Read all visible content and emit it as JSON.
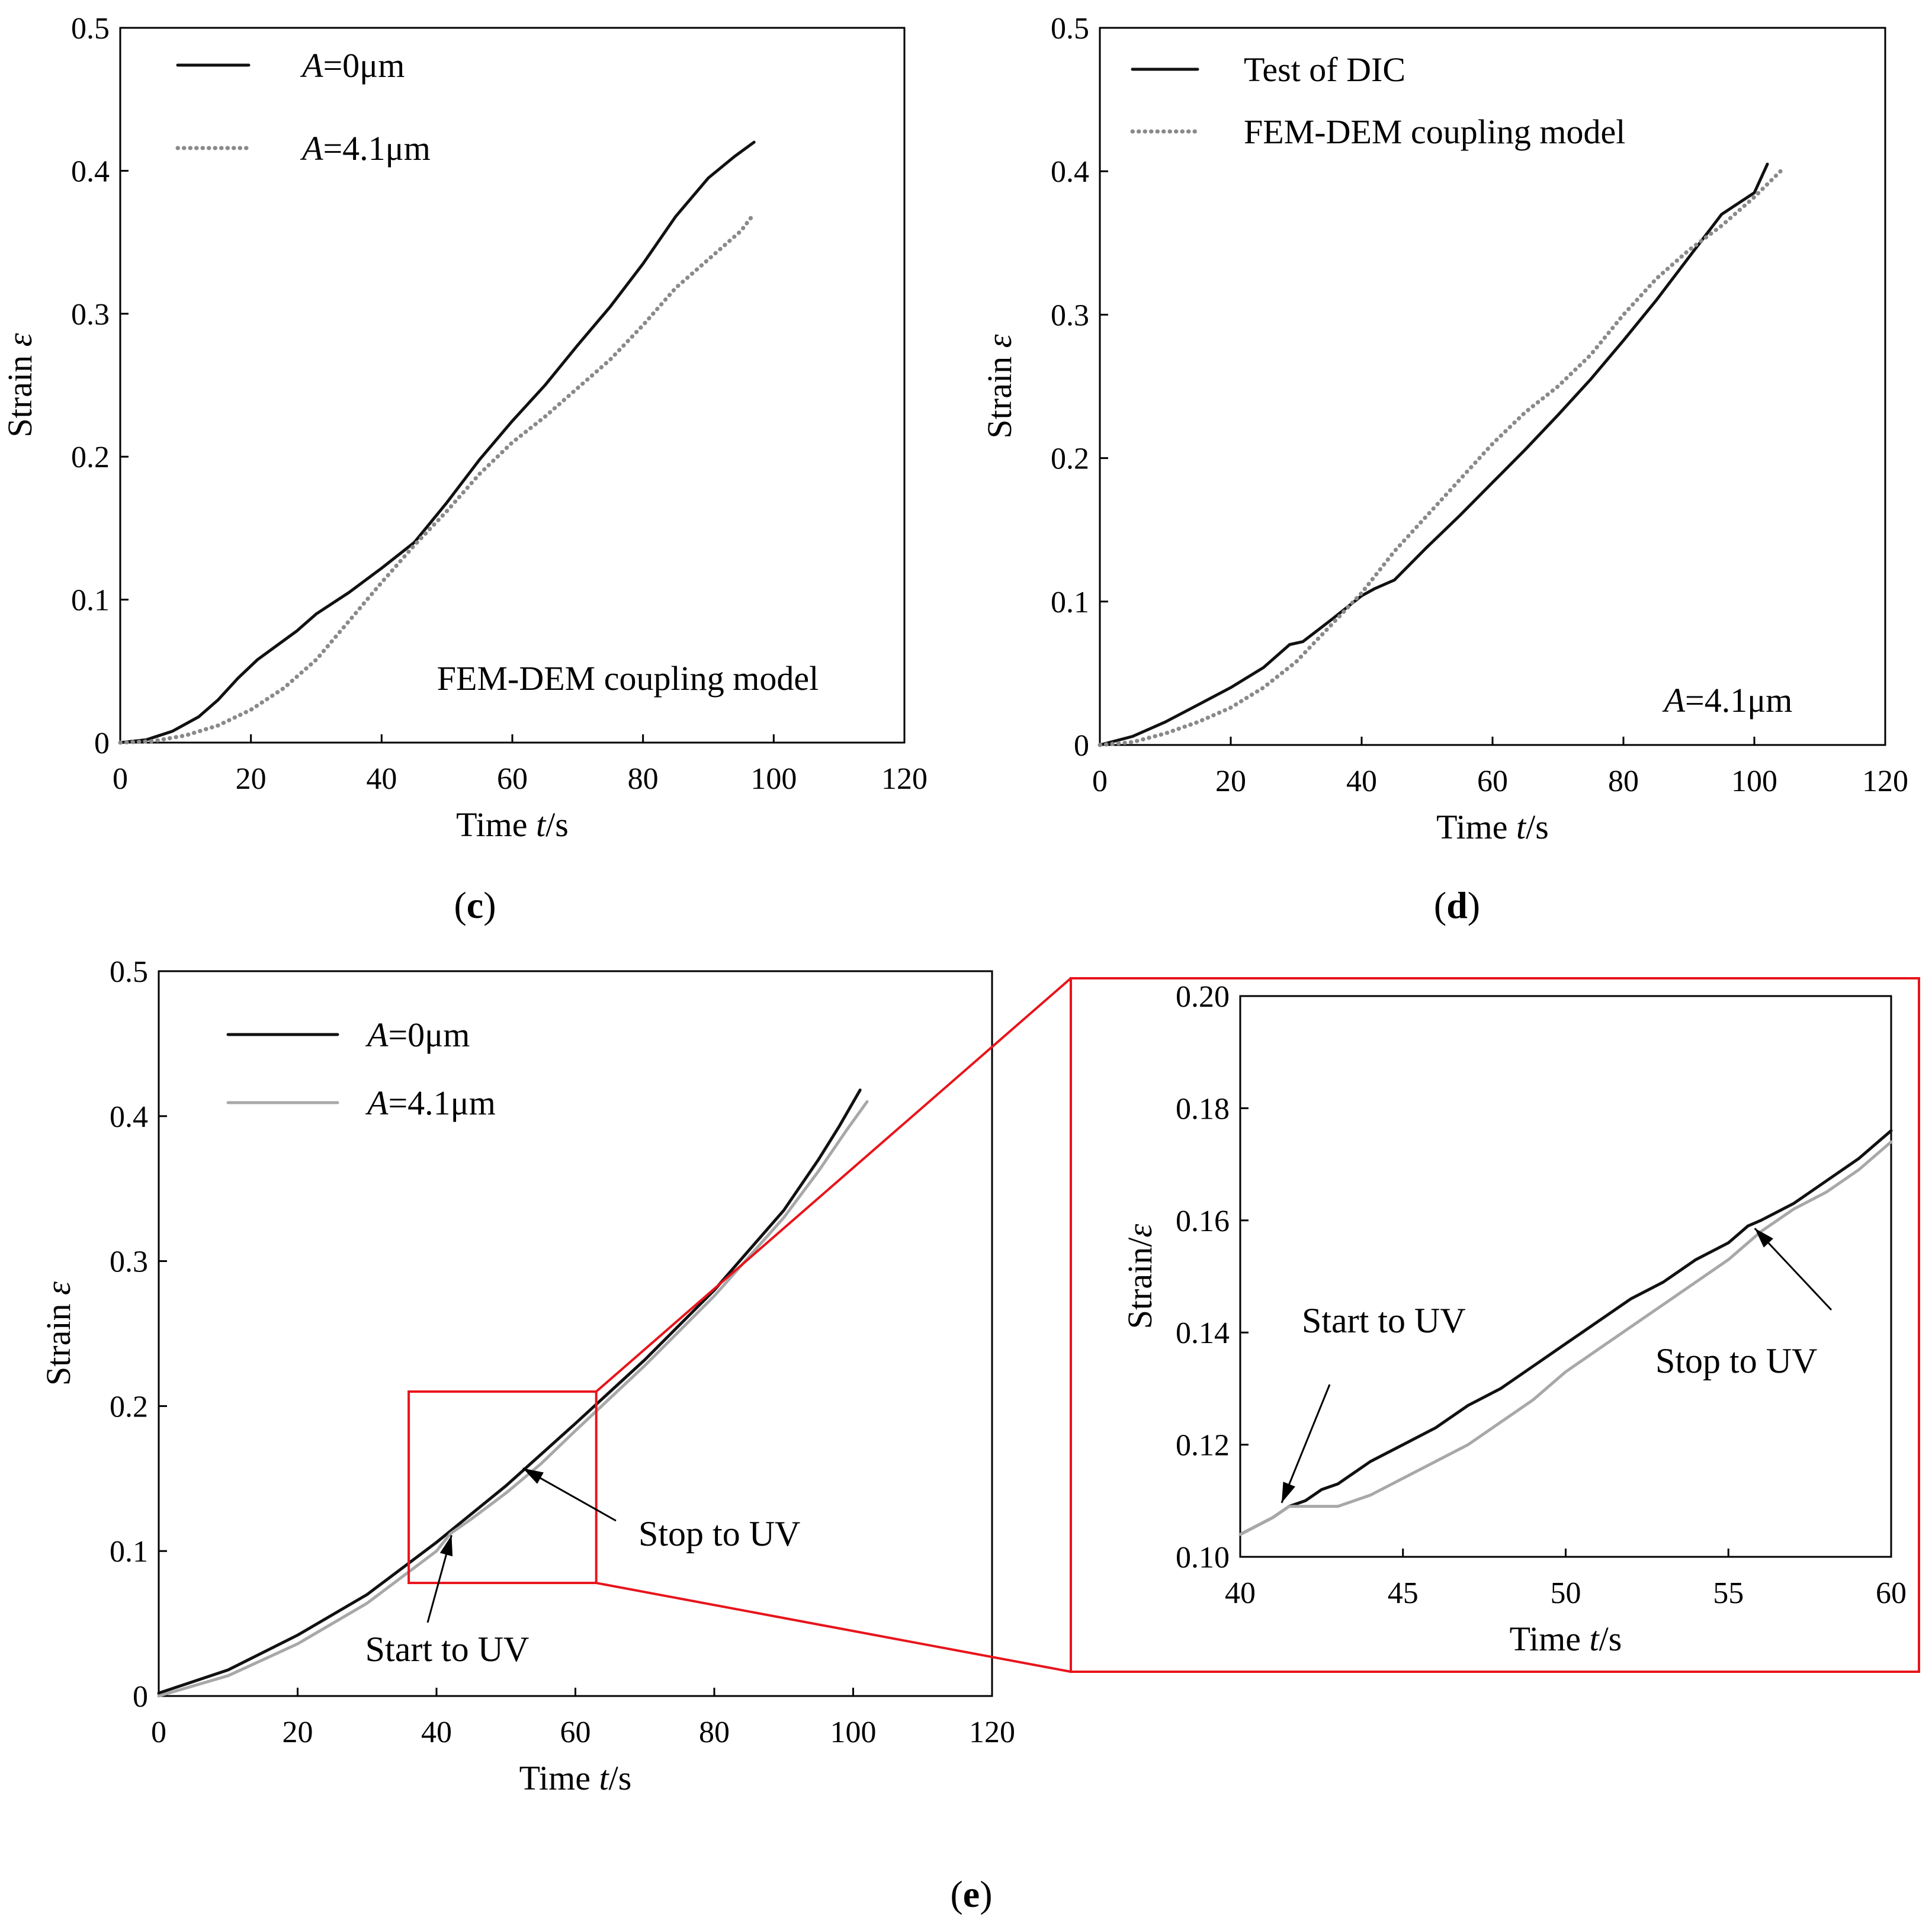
{
  "chart_data": [
    {
      "id": "c",
      "panel_label": "c",
      "type": "line",
      "xlabel": {
        "pre": "Time ",
        "var": "t",
        "post": "/s"
      },
      "ylabel": {
        "pre": "Strain ",
        "var": "ε"
      },
      "xlim": [
        0,
        120
      ],
      "ylim": [
        0,
        0.5
      ],
      "xticks": [
        "0",
        "20",
        "40",
        "60",
        "80",
        "100",
        "120"
      ],
      "yticks": [
        "0",
        "0.1",
        "0.2",
        "0.3",
        "0.4",
        "0.5"
      ],
      "annotation": "FEM-DEM coupling model",
      "series": [
        {
          "name": "A=0μm",
          "legend": {
            "var": "A",
            "rest": "=0μm"
          },
          "style": "solid",
          "color": "#111111",
          "points": [
            [
              0,
              0
            ],
            [
              4,
              0.002
            ],
            [
              8,
              0.008
            ],
            [
              12,
              0.018
            ],
            [
              15,
              0.03
            ],
            [
              18,
              0.045
            ],
            [
              21,
              0.058
            ],
            [
              24,
              0.068
            ],
            [
              27,
              0.078
            ],
            [
              30,
              0.09
            ],
            [
              35,
              0.105
            ],
            [
              40,
              0.122
            ],
            [
              45,
              0.14
            ],
            [
              50,
              0.168
            ],
            [
              55,
              0.198
            ],
            [
              60,
              0.225
            ],
            [
              65,
              0.25
            ],
            [
              70,
              0.278
            ],
            [
              75,
              0.305
            ],
            [
              80,
              0.335
            ],
            [
              85,
              0.368
            ],
            [
              90,
              0.395
            ],
            [
              94,
              0.41
            ],
            [
              97,
              0.42
            ]
          ]
        },
        {
          "name": "A=4.1μm",
          "legend": {
            "var": "A",
            "rest": "=4.1μm"
          },
          "style": "dotted",
          "color": "#8a8a8a",
          "points": [
            [
              0,
              0
            ],
            [
              5,
              0.001
            ],
            [
              10,
              0.005
            ],
            [
              15,
              0.012
            ],
            [
              20,
              0.023
            ],
            [
              25,
              0.038
            ],
            [
              30,
              0.058
            ],
            [
              35,
              0.085
            ],
            [
              40,
              0.112
            ],
            [
              45,
              0.138
            ],
            [
              50,
              0.162
            ],
            [
              55,
              0.188
            ],
            [
              60,
              0.21
            ],
            [
              65,
              0.228
            ],
            [
              70,
              0.248
            ],
            [
              75,
              0.268
            ],
            [
              80,
              0.292
            ],
            [
              85,
              0.318
            ],
            [
              90,
              0.338
            ],
            [
              95,
              0.358
            ],
            [
              97,
              0.37
            ]
          ]
        }
      ]
    },
    {
      "id": "d",
      "panel_label": "d",
      "type": "line",
      "xlabel": {
        "pre": "Time ",
        "var": "t",
        "post": "/s"
      },
      "ylabel": {
        "pre": "Strain ",
        "var": "ε"
      },
      "xlim": [
        0,
        120
      ],
      "ylim": [
        0,
        0.5
      ],
      "xticks": [
        "0",
        "20",
        "40",
        "60",
        "80",
        "100",
        "120"
      ],
      "yticks": [
        "0",
        "0.1",
        "0.2",
        "0.3",
        "0.4",
        "0.5"
      ],
      "annotation": {
        "var": "A",
        "rest": "=4.1μm"
      },
      "series": [
        {
          "name": "Test of DIC",
          "legend": {
            "var": "",
            "rest": "Test of DIC"
          },
          "style": "solid",
          "color": "#111111",
          "points": [
            [
              0,
              0
            ],
            [
              5,
              0.006
            ],
            [
              10,
              0.016
            ],
            [
              15,
              0.028
            ],
            [
              20,
              0.04
            ],
            [
              25,
              0.054
            ],
            [
              29,
              0.07
            ],
            [
              31,
              0.072
            ],
            [
              35,
              0.086
            ],
            [
              40,
              0.104
            ],
            [
              42,
              0.109
            ],
            [
              45,
              0.115
            ],
            [
              50,
              0.138
            ],
            [
              55,
              0.16
            ],
            [
              60,
              0.183
            ],
            [
              65,
              0.206
            ],
            [
              70,
              0.23
            ],
            [
              75,
              0.255
            ],
            [
              80,
              0.282
            ],
            [
              85,
              0.31
            ],
            [
              90,
              0.34
            ],
            [
              95,
              0.37
            ],
            [
              100,
              0.385
            ],
            [
              102,
              0.405
            ]
          ]
        },
        {
          "name": "FEM-DEM coupling model",
          "legend": {
            "var": "",
            "rest": "FEM-DEM coupling model"
          },
          "style": "dotted",
          "color": "#8a8a8a",
          "points": [
            [
              0,
              0
            ],
            [
              5,
              0.002
            ],
            [
              10,
              0.008
            ],
            [
              15,
              0.016
            ],
            [
              20,
              0.026
            ],
            [
              25,
              0.04
            ],
            [
              30,
              0.058
            ],
            [
              35,
              0.082
            ],
            [
              40,
              0.106
            ],
            [
              45,
              0.135
            ],
            [
              50,
              0.16
            ],
            [
              55,
              0.185
            ],
            [
              60,
              0.21
            ],
            [
              65,
              0.232
            ],
            [
              70,
              0.25
            ],
            [
              75,
              0.272
            ],
            [
              80,
              0.3
            ],
            [
              85,
              0.325
            ],
            [
              90,
              0.345
            ],
            [
              95,
              0.362
            ],
            [
              100,
              0.382
            ],
            [
              104,
              0.4
            ]
          ]
        }
      ]
    },
    {
      "id": "e",
      "panel_label": "e",
      "type": "line",
      "xlabel": {
        "pre": "Time ",
        "var": "t",
        "post": "/s"
      },
      "ylabel": {
        "pre": "Strain ",
        "var": "ε"
      },
      "xlim": [
        0,
        120
      ],
      "ylim": [
        0,
        0.5
      ],
      "xticks": [
        "0",
        "20",
        "40",
        "60",
        "80",
        "100",
        "120"
      ],
      "yticks": [
        "0",
        "0.1",
        "0.2",
        "0.3",
        "0.4",
        "0.5"
      ],
      "zoom_region": {
        "x": [
          36,
          63
        ],
        "y": [
          0.078,
          0.21
        ]
      },
      "annotations": [
        {
          "text": "Start to UV",
          "target": [
            42,
            0.115
          ]
        },
        {
          "text": "Stop to UV",
          "target": [
            55,
            0.162
          ]
        }
      ],
      "series": [
        {
          "name": "A=0μm",
          "legend": {
            "var": "A",
            "rest": "=0μm"
          },
          "style": "solid",
          "color": "#111111",
          "points": [
            [
              0,
              0.002
            ],
            [
              10,
              0.018
            ],
            [
              20,
              0.042
            ],
            [
              30,
              0.07
            ],
            [
              40,
              0.106
            ],
            [
              50,
              0.145
            ],
            [
              60,
              0.188
            ],
            [
              70,
              0.232
            ],
            [
              80,
              0.28
            ],
            [
              90,
              0.335
            ],
            [
              95,
              0.37
            ],
            [
              98,
              0.393
            ],
            [
              101,
              0.418
            ]
          ]
        },
        {
          "name": "A=4.1μm",
          "legend": {
            "var": "A",
            "rest": "=4.1μm"
          },
          "style": "solid",
          "color": "#a8a8a8",
          "points": [
            [
              0,
              0
            ],
            [
              10,
              0.014
            ],
            [
              20,
              0.036
            ],
            [
              30,
              0.064
            ],
            [
              40,
              0.1
            ],
            [
              42,
              0.112
            ],
            [
              45,
              0.122
            ],
            [
              50,
              0.14
            ],
            [
              55,
              0.16
            ],
            [
              60,
              0.183
            ],
            [
              70,
              0.228
            ],
            [
              80,
              0.276
            ],
            [
              90,
              0.33
            ],
            [
              95,
              0.362
            ],
            [
              99,
              0.39
            ],
            [
              102,
              0.41
            ]
          ]
        }
      ]
    },
    {
      "id": "e-zoom",
      "type": "line",
      "xlabel": {
        "pre": "Time ",
        "var": "t",
        "post": "/s"
      },
      "ylabel": {
        "pre": "Strain/",
        "var": "ε"
      },
      "xlim": [
        40,
        60
      ],
      "ylim": [
        0.1,
        0.2
      ],
      "xticks": [
        "40",
        "45",
        "50",
        "55",
        "60"
      ],
      "yticks": [
        "0.10",
        "0.12",
        "0.14",
        "0.16",
        "0.18",
        "0.20"
      ],
      "annotations": [
        {
          "text": "Start to UV",
          "target": [
            41.2,
            0.109
          ]
        },
        {
          "text": "Stop to UV",
          "target": [
            55.7,
            0.159
          ]
        }
      ],
      "series": [
        {
          "name": "A=0μm",
          "style": "solid",
          "color": "#111111",
          "points": [
            [
              40,
              0.104
            ],
            [
              41,
              0.107
            ],
            [
              41.5,
              0.109
            ],
            [
              42,
              0.11
            ],
            [
              42.5,
              0.112
            ],
            [
              43,
              0.113
            ],
            [
              44,
              0.117
            ],
            [
              45,
              0.12
            ],
            [
              46,
              0.123
            ],
            [
              47,
              0.127
            ],
            [
              48,
              0.13
            ],
            [
              49,
              0.134
            ],
            [
              50,
              0.138
            ],
            [
              51,
              0.142
            ],
            [
              52,
              0.146
            ],
            [
              53,
              0.149
            ],
            [
              54,
              0.153
            ],
            [
              55,
              0.156
            ],
            [
              55.6,
              0.159
            ],
            [
              56,
              0.16
            ],
            [
              57,
              0.163
            ],
            [
              58,
              0.167
            ],
            [
              59,
              0.171
            ],
            [
              60,
              0.176
            ]
          ]
        },
        {
          "name": "A=4.1μm",
          "style": "solid",
          "color": "#a8a8a8",
          "points": [
            [
              40,
              0.104
            ],
            [
              41,
              0.107
            ],
            [
              41.5,
              0.109
            ],
            [
              42,
              0.109
            ],
            [
              43,
              0.109
            ],
            [
              44,
              0.111
            ],
            [
              45,
              0.114
            ],
            [
              46,
              0.117
            ],
            [
              47,
              0.12
            ],
            [
              48,
              0.124
            ],
            [
              49,
              0.128
            ],
            [
              50,
              0.133
            ],
            [
              51,
              0.137
            ],
            [
              52,
              0.141
            ],
            [
              53,
              0.145
            ],
            [
              54,
              0.149
            ],
            [
              55,
              0.153
            ],
            [
              56,
              0.158
            ],
            [
              57,
              0.162
            ],
            [
              58,
              0.165
            ],
            [
              59,
              0.169
            ],
            [
              60,
              0.174
            ]
          ]
        }
      ]
    }
  ]
}
